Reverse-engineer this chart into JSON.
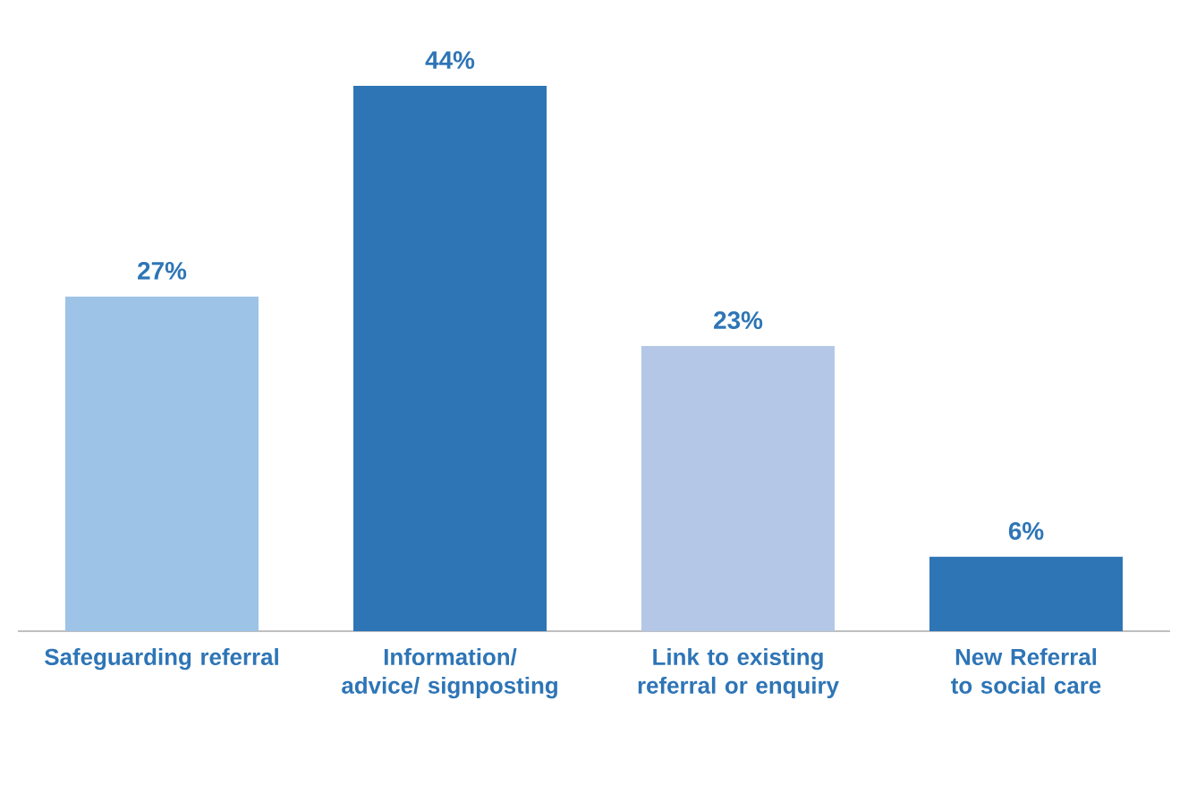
{
  "chart_data": {
    "type": "bar",
    "categories": [
      "Safeguarding referral",
      "Information/ advice/ signposting",
      "Link to existing referral or enquiry",
      "New Referral to social care"
    ],
    "values": [
      27,
      44,
      23,
      6
    ],
    "colors": [
      "#9dc3e6",
      "#2e75b6",
      "#b4c7e7",
      "#2e75b6"
    ],
    "value_labels": [
      "27%",
      "44%",
      "23%",
      "6%"
    ]
  }
}
